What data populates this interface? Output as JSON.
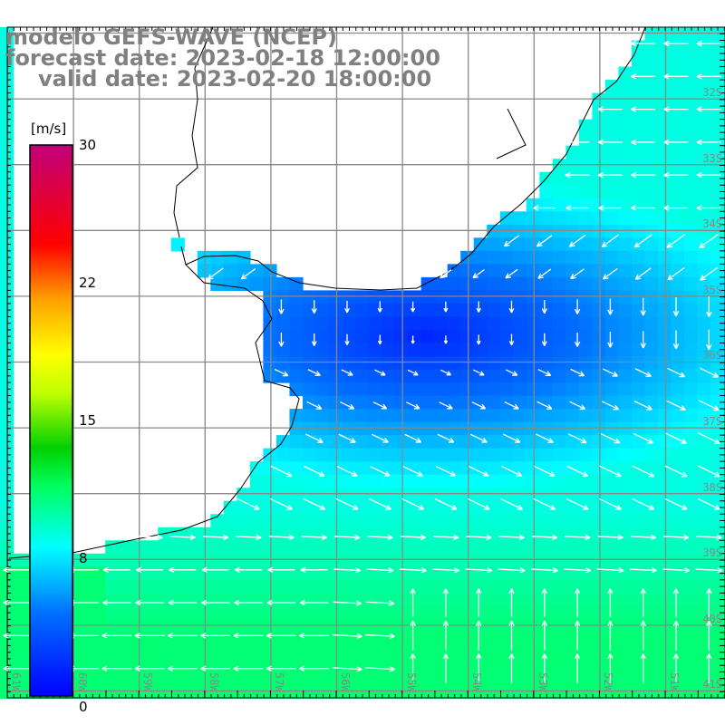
{
  "title": {
    "line1": "modelo GEFS-WAVE (NCEP)",
    "line2": "forecast date: 2023-02-18 12:00:00",
    "line3": "valid date: 2023-02-20 18:00:00"
  },
  "colorbar": {
    "unit": "[m/s]",
    "ticks": [
      "30",
      "22",
      "15",
      "8",
      "0"
    ],
    "range": [
      0,
      30
    ],
    "colors": [
      "#0000ff",
      "#0080ff",
      "#00ffff",
      "#00ff40",
      "#00d000",
      "#ffff00",
      "#ffa000",
      "#ff4000",
      "#ff0000",
      "#e00050",
      "#c0007a"
    ]
  },
  "lat_labels": [
    "32S",
    "33S",
    "34S",
    "35S",
    "36S",
    "37S",
    "38S",
    "39S",
    "40S",
    "41S"
  ],
  "lon_labels": [
    "61W",
    "60W",
    "59W",
    "58W",
    "57W",
    "56W",
    "55W",
    "54W",
    "53W",
    "52W",
    "51W"
  ],
  "colors": {
    "land": "#ffffff",
    "grid": "#888888",
    "coast": "#000000",
    "arrow": "#ffffff"
  }
}
